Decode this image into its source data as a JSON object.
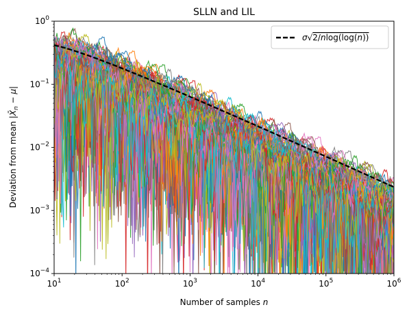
{
  "chart_data": {
    "type": "line",
    "title": "SLLN and LIL",
    "xlabel": "Number of samples n",
    "ylabel": "Deviation from mean |X̄n − μ|",
    "xscale": "log",
    "yscale": "log",
    "xlim": [
      10,
      1000000
    ],
    "ylim": [
      0.0001,
      1
    ],
    "x_ticks": [
      {
        "base": "10",
        "exp": "1",
        "value": 10
      },
      {
        "base": "10",
        "exp": "2",
        "value": 100
      },
      {
        "base": "10",
        "exp": "3",
        "value": 1000
      },
      {
        "base": "10",
        "exp": "4",
        "value": 10000
      },
      {
        "base": "10",
        "exp": "5",
        "value": 100000
      },
      {
        "base": "10",
        "exp": "6",
        "value": 1000000
      }
    ],
    "y_ticks": [
      {
        "base": "10",
        "exp": "−4",
        "value": 0.0001
      },
      {
        "base": "10",
        "exp": "−3",
        "value": 0.001
      },
      {
        "base": "10",
        "exp": "−2",
        "value": 0.01
      },
      {
        "base": "10",
        "exp": "−1",
        "value": 0.1
      },
      {
        "base": "10",
        "exp": "0",
        "value": 1
      }
    ],
    "grid": false,
    "legend": {
      "position": "top-right",
      "entries": [
        {
          "label": "σ√(2/n log(log(n)))",
          "color": "#000000",
          "style": "dashed"
        }
      ]
    },
    "reference_curve": {
      "name": "σ√(2/n log(log(n)))",
      "sigma": 1.0,
      "x": [
        10,
        30,
        100,
        300,
        1000,
        3000,
        10000,
        30000,
        100000,
        300000,
        1000000
      ],
      "y": [
        0.384,
        0.234,
        0.1355,
        0.0817,
        0.0466,
        0.0279,
        0.01575,
        0.00933,
        0.00522,
        0.00305,
        0.00227
      ]
    },
    "random_walk_series": {
      "count": 100,
      "description_values": "|sample mean − μ| for n = 10 … 10^6 per trial",
      "colors": [
        "#1f77b4",
        "#ff7f0e",
        "#2ca02c",
        "#d62728",
        "#9467bd",
        "#8c564b",
        "#e377c2",
        "#7f7f7f",
        "#bcbd22",
        "#17becf"
      ]
    }
  }
}
